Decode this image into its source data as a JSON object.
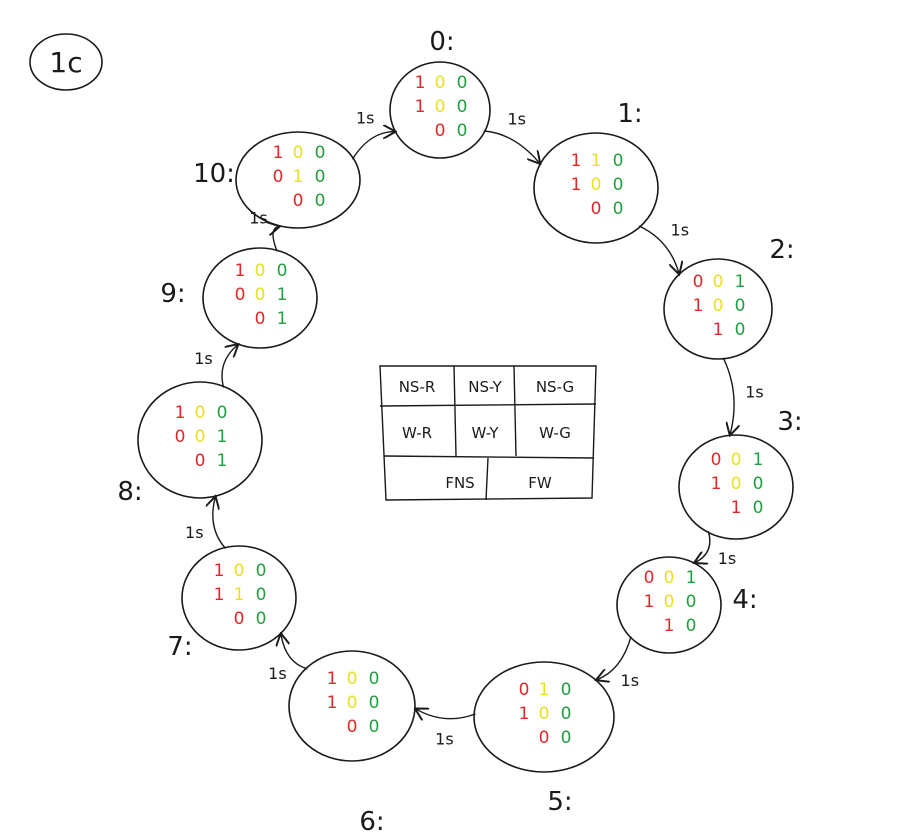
{
  "diagram": {
    "tag": "1c",
    "colors": {
      "red": "#e02828",
      "yellow": "#e8e020",
      "green": "#20a040",
      "ink": "#1a1a1a"
    },
    "transition_label": "1s",
    "states": [
      {
        "label": "0:",
        "rows": [
          [
            "1",
            "0",
            "0"
          ],
          [
            "1",
            "0",
            "0"
          ],
          [
            "",
            "0",
            "0"
          ]
        ]
      },
      {
        "label": "1:",
        "rows": [
          [
            "1",
            "1",
            "0"
          ],
          [
            "1",
            "0",
            "0"
          ],
          [
            "",
            "0",
            "0"
          ]
        ]
      },
      {
        "label": "2:",
        "rows": [
          [
            "0",
            "0",
            "1"
          ],
          [
            "1",
            "0",
            "0"
          ],
          [
            "",
            "1",
            "0"
          ]
        ]
      },
      {
        "label": "3:",
        "rows": [
          [
            "0",
            "0",
            "1"
          ],
          [
            "1",
            "0",
            "0"
          ],
          [
            "",
            "1",
            "0"
          ]
        ]
      },
      {
        "label": "4:",
        "rows": [
          [
            "0",
            "0",
            "1"
          ],
          [
            "1",
            "0",
            "0"
          ],
          [
            "",
            "1",
            "0"
          ]
        ]
      },
      {
        "label": "5:",
        "rows": [
          [
            "0",
            "1",
            "0"
          ],
          [
            "1",
            "0",
            "0"
          ],
          [
            "",
            "0",
            "0"
          ]
        ]
      },
      {
        "label": "6:",
        "rows": [
          [
            "1",
            "0",
            "0"
          ],
          [
            "1",
            "0",
            "0"
          ],
          [
            "",
            "0",
            "0"
          ]
        ]
      },
      {
        "label": "7:",
        "rows": [
          [
            "1",
            "0",
            "0"
          ],
          [
            "1",
            "1",
            "0"
          ],
          [
            "",
            "0",
            "0"
          ]
        ]
      },
      {
        "label": "8:",
        "rows": [
          [
            "1",
            "0",
            "0"
          ],
          [
            "0",
            "0",
            "1"
          ],
          [
            "",
            "0",
            "1"
          ]
        ]
      },
      {
        "label": "9:",
        "rows": [
          [
            "1",
            "0",
            "0"
          ],
          [
            "0",
            "0",
            "1"
          ],
          [
            "",
            "0",
            "1"
          ]
        ]
      },
      {
        "label": "10:",
        "rows": [
          [
            "1",
            "0",
            "0"
          ],
          [
            "0",
            "1",
            "0"
          ],
          [
            "",
            "0",
            "0"
          ]
        ]
      }
    ],
    "legend": {
      "row1": [
        "NS-R",
        "NS-Y",
        "NS-G"
      ],
      "row2": [
        "W-R",
        "W-Y",
        "W-G"
      ],
      "row3": [
        "FNS",
        "FW"
      ]
    }
  }
}
